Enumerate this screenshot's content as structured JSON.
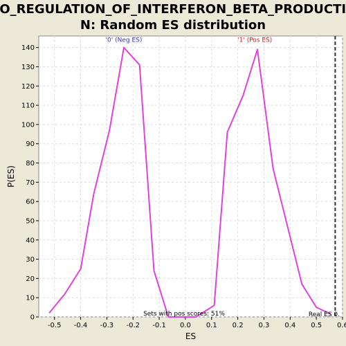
{
  "chart_data": {
    "type": "line",
    "title_line1": "GO_REGULATION_OF_INTERFERON_BETA_PRODUCTIO",
    "title_line2": "N: Random ES distribution",
    "xlabel": "ES",
    "ylabel": "P(ES)",
    "xlim": [
      -0.56,
      0.6
    ],
    "ylim": [
      0,
      146
    ],
    "x_ticks": [
      "-0.5",
      "-0.4",
      "-0.3",
      "-0.2",
      "-0.1",
      "0.0",
      "0.1",
      "0.2",
      "0.3",
      "0.4",
      "0.5",
      "0.6"
    ],
    "x_tick_values": [
      -0.5,
      -0.4,
      -0.3,
      -0.2,
      -0.1,
      0.0,
      0.1,
      0.2,
      0.3,
      0.4,
      0.5,
      0.6
    ],
    "y_ticks": [
      "0",
      "10",
      "20",
      "30",
      "40",
      "50",
      "60",
      "70",
      "80",
      "90",
      "100",
      "110",
      "120",
      "130",
      "140"
    ],
    "y_tick_values": [
      0,
      10,
      20,
      30,
      40,
      50,
      60,
      70,
      80,
      90,
      100,
      110,
      120,
      130,
      140
    ],
    "grid": true,
    "series": [
      {
        "color": "#E040E0",
        "x": [
          -0.52,
          -0.46,
          -0.4,
          -0.35,
          -0.29,
          -0.235,
          -0.175,
          -0.12,
          -0.065,
          0.0,
          0.04,
          0.11,
          0.16,
          0.22,
          0.275,
          0.335,
          0.39,
          0.445,
          0.5,
          0.555
        ],
        "y": [
          2,
          12,
          25,
          64,
          97,
          140,
          131,
          24,
          0,
          0,
          0,
          6,
          96,
          115,
          139,
          77,
          47,
          17,
          5,
          1.5
        ]
      }
    ],
    "annotations": {
      "neg_label": "'0' (Neg ES)",
      "pos_label": "'1' (Pos ES)",
      "sets_label": "Sets with pos scores: 51%",
      "real_label": "Real ES 0."
    },
    "neg_label_at": {
      "x": -0.235,
      "y": 143
    },
    "pos_label_at": {
      "x": 0.265,
      "y": 143
    },
    "real_es_x": 0.572,
    "colors": {
      "background": "#ECE9D8",
      "plot_bg": "#FFFFFF",
      "line": "#E040E0",
      "neg_label": "#3333CC",
      "pos_label": "#CC2222",
      "grid": "#DDDDDD",
      "real_line": "#333333"
    }
  }
}
